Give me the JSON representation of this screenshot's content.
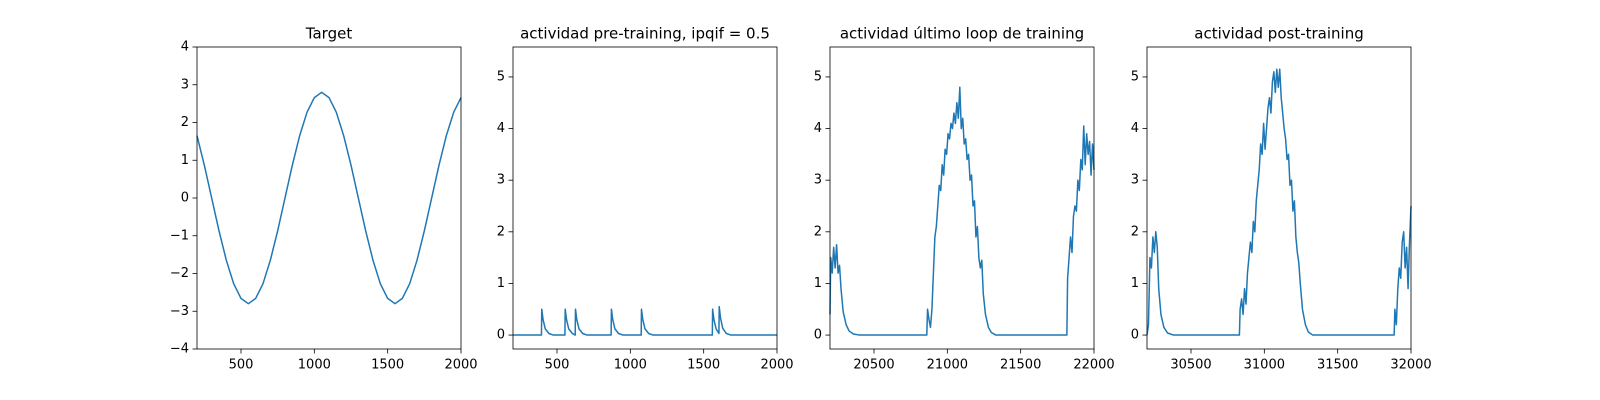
{
  "chart_data": [
    {
      "type": "line",
      "title": "Target",
      "color": "#1f77b4",
      "xlim": [
        200,
        2000
      ],
      "xticks": [
        500,
        1000,
        1500,
        2000
      ],
      "ylim": [
        -4,
        4
      ],
      "yticks": [
        {
          "value": -4,
          "label": "−4"
        },
        {
          "value": -3,
          "label": "−3"
        },
        {
          "value": -2,
          "label": "−2"
        },
        {
          "value": -1,
          "label": "−1"
        },
        0,
        1,
        2,
        3,
        4
      ],
      "x": [
        200,
        250,
        300,
        350,
        400,
        450,
        500,
        550,
        600,
        650,
        700,
        750,
        800,
        850,
        900,
        950,
        1000,
        1050,
        1100,
        1150,
        1200,
        1250,
        1300,
        1350,
        1400,
        1450,
        1500,
        1550,
        1600,
        1650,
        1700,
        1750,
        1800,
        1850,
        1900,
        1950,
        2000
      ],
      "values": [
        1.65,
        0.87,
        0,
        -0.87,
        -1.65,
        -2.27,
        -2.66,
        -2.8,
        -2.66,
        -2.27,
        -1.65,
        -0.87,
        0,
        0.87,
        1.65,
        2.27,
        2.66,
        2.8,
        2.66,
        2.27,
        1.65,
        0.87,
        0,
        -0.87,
        -1.65,
        -2.27,
        -2.66,
        -2.8,
        -2.66,
        -2.27,
        -1.65,
        -0.87,
        0,
        0.87,
        1.65,
        2.27,
        2.66
      ]
    },
    {
      "type": "line",
      "title": "actividad pre-training, ipqif = 0.5",
      "color": "#1f77b4",
      "xlim": [
        200,
        2000
      ],
      "xticks": [
        500,
        1000,
        1500,
        2000
      ],
      "ylim": [
        -0.27,
        5.58
      ],
      "yticks": [
        0,
        1,
        2,
        3,
        4,
        5
      ],
      "x": [
        200,
        394,
        396,
        405,
        420,
        445,
        475,
        554,
        556,
        565,
        580,
        605,
        624,
        626,
        635,
        650,
        675,
        705,
        869,
        871,
        880,
        895,
        920,
        950,
        1074,
        1076,
        1085,
        1100,
        1125,
        1155,
        1559,
        1561,
        1570,
        1585,
        1604,
        1606,
        1615,
        1630,
        1655,
        1685,
        2000
      ],
      "values": [
        0,
        0,
        0.5,
        0.3,
        0.12,
        0.03,
        0,
        0,
        0.5,
        0.3,
        0.12,
        0.03,
        0,
        0.5,
        0.3,
        0.12,
        0.03,
        0,
        0,
        0.5,
        0.3,
        0.12,
        0.03,
        0,
        0,
        0.5,
        0.3,
        0.12,
        0.03,
        0,
        0,
        0.5,
        0.3,
        0.12,
        0.03,
        0.55,
        0.33,
        0.13,
        0.03,
        0,
        0
      ]
    },
    {
      "type": "line",
      "title": "actividad último loop de training",
      "color": "#1f77b4",
      "xlim": [
        20200,
        22000
      ],
      "xticks": [
        20500,
        21000,
        21500,
        22000
      ],
      "ylim": [
        -0.27,
        5.58
      ],
      "yticks": [
        0,
        1,
        2,
        3,
        4,
        5
      ],
      "x": [
        20200,
        20205,
        20215,
        20225,
        20235,
        20245,
        20255,
        20265,
        20275,
        20290,
        20310,
        20330,
        20360,
        20400,
        20860,
        20865,
        20875,
        20885,
        20895,
        20905,
        20915,
        20925,
        20935,
        20945,
        20955,
        20965,
        20975,
        20985,
        20995,
        21005,
        21015,
        21025,
        21035,
        21045,
        21055,
        21065,
        21075,
        21085,
        21095,
        21105,
        21115,
        21125,
        21135,
        21145,
        21155,
        21165,
        21175,
        21185,
        21195,
        21205,
        21215,
        21225,
        21235,
        21245,
        21260,
        21280,
        21300,
        21330,
        21815,
        21820,
        21830,
        21840,
        21850,
        21860,
        21870,
        21880,
        21890,
        21900,
        21910,
        21920,
        21930,
        21940,
        21950,
        21960,
        21970,
        21980,
        21990,
        22000
      ],
      "values": [
        0.4,
        1.5,
        1.2,
        1.7,
        1.3,
        1.75,
        1.2,
        1.35,
        0.9,
        0.45,
        0.2,
        0.08,
        0.02,
        0,
        0,
        0.5,
        0.3,
        0.15,
        0.5,
        1.2,
        1.9,
        2.1,
        2.5,
        2.9,
        2.8,
        3.3,
        3.1,
        3.6,
        3.5,
        3.9,
        3.8,
        4.1,
        4.0,
        4.3,
        4.1,
        4.5,
        4.2,
        4.8,
        4.0,
        4.2,
        3.7,
        3.8,
        3.4,
        3.5,
        3.0,
        3.1,
        2.5,
        2.6,
        1.9,
        2.1,
        1.5,
        1.3,
        1.45,
        0.8,
        0.4,
        0.15,
        0.05,
        0,
        0,
        1.1,
        1.5,
        1.9,
        1.6,
        2.3,
        2.5,
        2.4,
        3.0,
        2.8,
        3.4,
        3.2,
        4.05,
        3.3,
        3.9,
        3.5,
        3.75,
        3.1,
        3.7,
        3.2
      ]
    },
    {
      "type": "line",
      "title": "actividad post-training",
      "color": "#1f77b4",
      "xlim": [
        30200,
        32000
      ],
      "xticks": [
        30500,
        31000,
        31500,
        32000
      ],
      "ylim": [
        -0.27,
        5.58
      ],
      "yticks": [
        0,
        1,
        2,
        3,
        4,
        5
      ],
      "x": [
        30200,
        30210,
        30220,
        30230,
        30240,
        30250,
        30260,
        30270,
        30280,
        30295,
        30315,
        30340,
        30380,
        30830,
        30835,
        30845,
        30855,
        30865,
        30875,
        30885,
        30895,
        30905,
        30915,
        30925,
        30935,
        30945,
        30955,
        30965,
        30975,
        30985,
        30995,
        31005,
        31015,
        31025,
        31035,
        31045,
        31055,
        31065,
        31075,
        31085,
        31095,
        31105,
        31115,
        31125,
        31135,
        31145,
        31155,
        31165,
        31175,
        31185,
        31195,
        31205,
        31215,
        31225,
        31235,
        31245,
        31260,
        31280,
        31300,
        31330,
        31885,
        31890,
        31900,
        31910,
        31920,
        31930,
        31940,
        31950,
        31960,
        31970,
        31980,
        31990,
        32000
      ],
      "values": [
        0,
        0.2,
        1.5,
        1.3,
        1.9,
        1.6,
        2.0,
        1.7,
        0.9,
        0.4,
        0.15,
        0.04,
        0,
        0,
        0.5,
        0.7,
        0.4,
        0.9,
        0.6,
        1.2,
        1.5,
        1.8,
        1.6,
        2.2,
        2.0,
        2.6,
        2.9,
        3.2,
        3.7,
        3.5,
        4.1,
        3.6,
        4.0,
        4.4,
        4.6,
        4.3,
        4.9,
        5.1,
        4.7,
        5.15,
        4.8,
        5.15,
        4.6,
        4.3,
        4.0,
        3.8,
        3.4,
        3.5,
        2.9,
        3.0,
        2.4,
        2.6,
        1.9,
        1.6,
        1.4,
        1.0,
        0.5,
        0.2,
        0.06,
        0,
        0,
        0.5,
        0.2,
        0.9,
        1.3,
        1.1,
        1.8,
        2.0,
        1.3,
        1.7,
        0.9,
        1.8,
        2.5
      ]
    }
  ]
}
